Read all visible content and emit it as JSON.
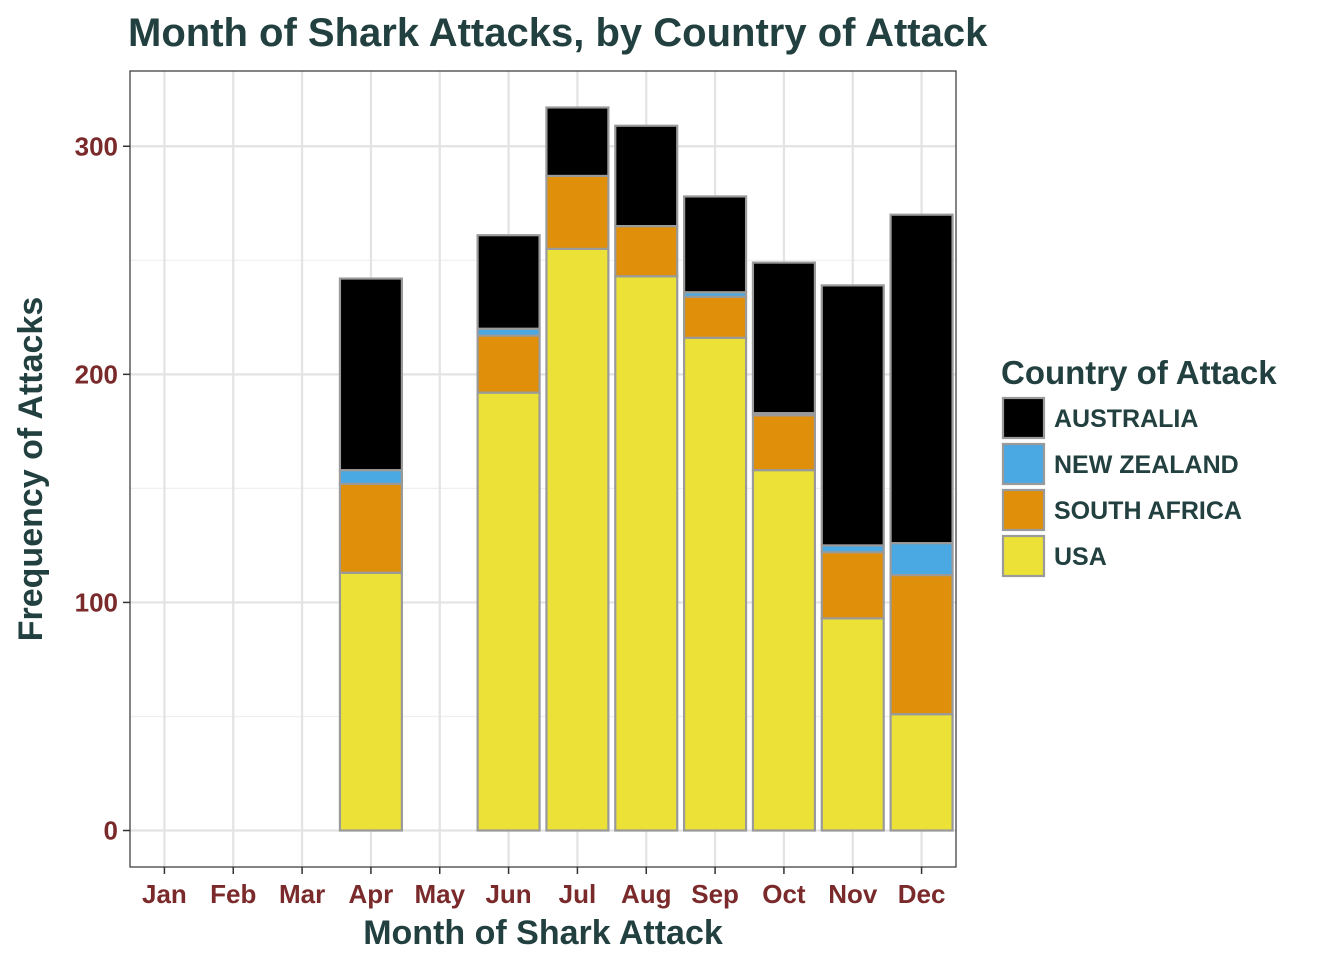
{
  "chart_data": {
    "type": "bar",
    "stacked": true,
    "title": "Month of Shark Attacks, by Country of Attack",
    "xlabel": "Month of Shark Attack",
    "ylabel": "Frequency of Attacks",
    "categories": [
      "Jan",
      "Feb",
      "Mar",
      "Apr",
      "May",
      "Jun",
      "Jul",
      "Aug",
      "Sep",
      "Oct",
      "Nov",
      "Dec"
    ],
    "ylim": [
      -16,
      333
    ],
    "yticks": [
      0,
      100,
      200,
      300
    ],
    "grid": true,
    "legend": {
      "title": "Country of Attack",
      "placement": "right"
    },
    "series": [
      {
        "name": "USA",
        "color": "#ece237",
        "values": [
          0,
          0,
          0,
          113,
          0,
          192,
          255,
          243,
          216,
          158,
          93,
          51
        ]
      },
      {
        "name": "SOUTH AFRICA",
        "color": "#e08f0a",
        "values": [
          0,
          0,
          0,
          39,
          0,
          25,
          32,
          22,
          18,
          24,
          29,
          61
        ]
      },
      {
        "name": "NEW ZEALAND",
        "color": "#4aa8e2",
        "values": [
          0,
          0,
          0,
          6,
          0,
          3,
          0,
          0,
          2,
          1,
          3,
          14
        ]
      },
      {
        "name": "AUSTRALIA",
        "color": "#000000",
        "values": [
          0,
          0,
          0,
          84,
          0,
          41,
          30,
          44,
          42,
          66,
          114,
          144
        ]
      }
    ],
    "legend_order": [
      "AUSTRALIA",
      "NEW ZEALAND",
      "SOUTH AFRICA",
      "USA"
    ]
  }
}
